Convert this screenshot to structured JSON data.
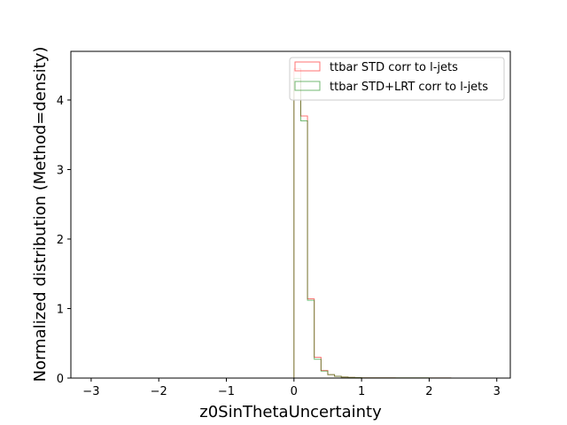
{
  "chart_data": {
    "type": "histogram-step",
    "title": "",
    "xlabel": "z0SinThetaUncertainty",
    "ylabel": "Normalized distribution (Method=density)",
    "xlim": [
      -3.3,
      3.2
    ],
    "ylim": [
      0,
      4.7
    ],
    "xticks": [
      -3,
      -2,
      -1,
      0,
      1,
      2,
      3
    ],
    "xtick_labels": [
      "−3",
      "−2",
      "−1",
      "0",
      "1",
      "2",
      "3"
    ],
    "yticks": [
      0,
      1,
      2,
      3,
      4
    ],
    "ytick_labels": [
      "0",
      "1",
      "2",
      "3",
      "4"
    ],
    "bin_edges": [
      0.0,
      0.1,
      0.2,
      0.3,
      0.4,
      0.5,
      0.6,
      0.7,
      0.8,
      0.9,
      1.0,
      1.5,
      2.0,
      2.32
    ],
    "series": [
      {
        "name": "ttbar STD corr to l-jets",
        "color": "#ff0000",
        "values": [
          4.45,
          3.77,
          1.14,
          0.3,
          0.11,
          0.05,
          0.025,
          0.015,
          0.01,
          0.007,
          0.004,
          0.002,
          0.001
        ]
      },
      {
        "name": "ttbar STD+LRT corr to l-jets",
        "color": "#008000",
        "values": [
          4.31,
          3.7,
          1.12,
          0.27,
          0.1,
          0.05,
          0.025,
          0.015,
          0.01,
          0.007,
          0.004,
          0.003,
          0.002
        ]
      }
    ],
    "legend": {
      "placement": "top-right",
      "entries": [
        "ttbar STD corr to l-jets",
        "ttbar STD+LRT corr to l-jets"
      ]
    },
    "grid": false
  }
}
